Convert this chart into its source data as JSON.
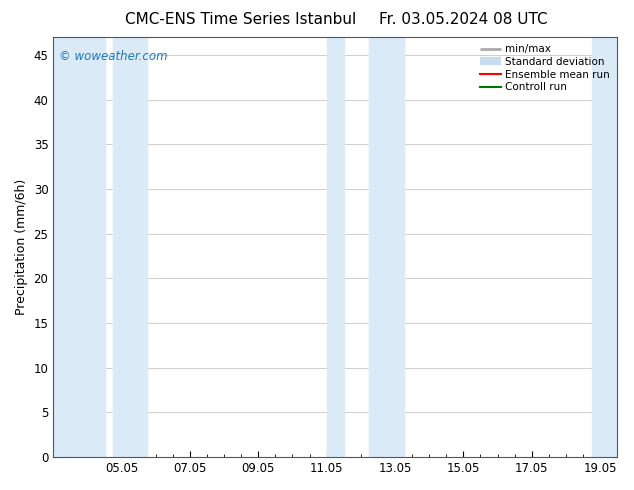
{
  "title": "CMC-ENS Time Series Istanbul",
  "title_right": "Fr. 03.05.2024 08 UTC",
  "ylabel": "Precipitation (mm/6h)",
  "watermark": "© woweather.com",
  "xlim": [
    3.0,
    19.5
  ],
  "ylim": [
    0,
    47
  ],
  "yticks": [
    0,
    5,
    10,
    15,
    20,
    25,
    30,
    35,
    40,
    45
  ],
  "xtick_labels": [
    "05.05",
    "07.05",
    "09.05",
    "11.05",
    "13.05",
    "15.05",
    "17.05",
    "19.05"
  ],
  "xtick_positions": [
    5.0,
    7.0,
    9.0,
    11.0,
    13.0,
    15.0,
    17.0,
    19.0
  ],
  "shaded_bands": [
    [
      3.0,
      4.5
    ],
    [
      4.75,
      5.75
    ],
    [
      11.0,
      11.5
    ],
    [
      12.25,
      13.25
    ],
    [
      18.75,
      19.5
    ]
  ],
  "shade_color": "#daeaf7",
  "background_color": "#ffffff",
  "legend_items": [
    {
      "label": "min/max",
      "color": "#aaaaaa",
      "lw": 2,
      "type": "hline"
    },
    {
      "label": "Standard deviation",
      "color": "#c8dcf0",
      "lw": 6,
      "type": "hline"
    },
    {
      "label": "Ensemble mean run",
      "color": "#ff0000",
      "lw": 1.5,
      "type": "line"
    },
    {
      "label": "Controll run",
      "color": "#007700",
      "lw": 1.5,
      "type": "line"
    }
  ],
  "watermark_color": "#1a7abf",
  "title_fontsize": 11,
  "axis_fontsize": 9,
  "tick_fontsize": 8.5
}
